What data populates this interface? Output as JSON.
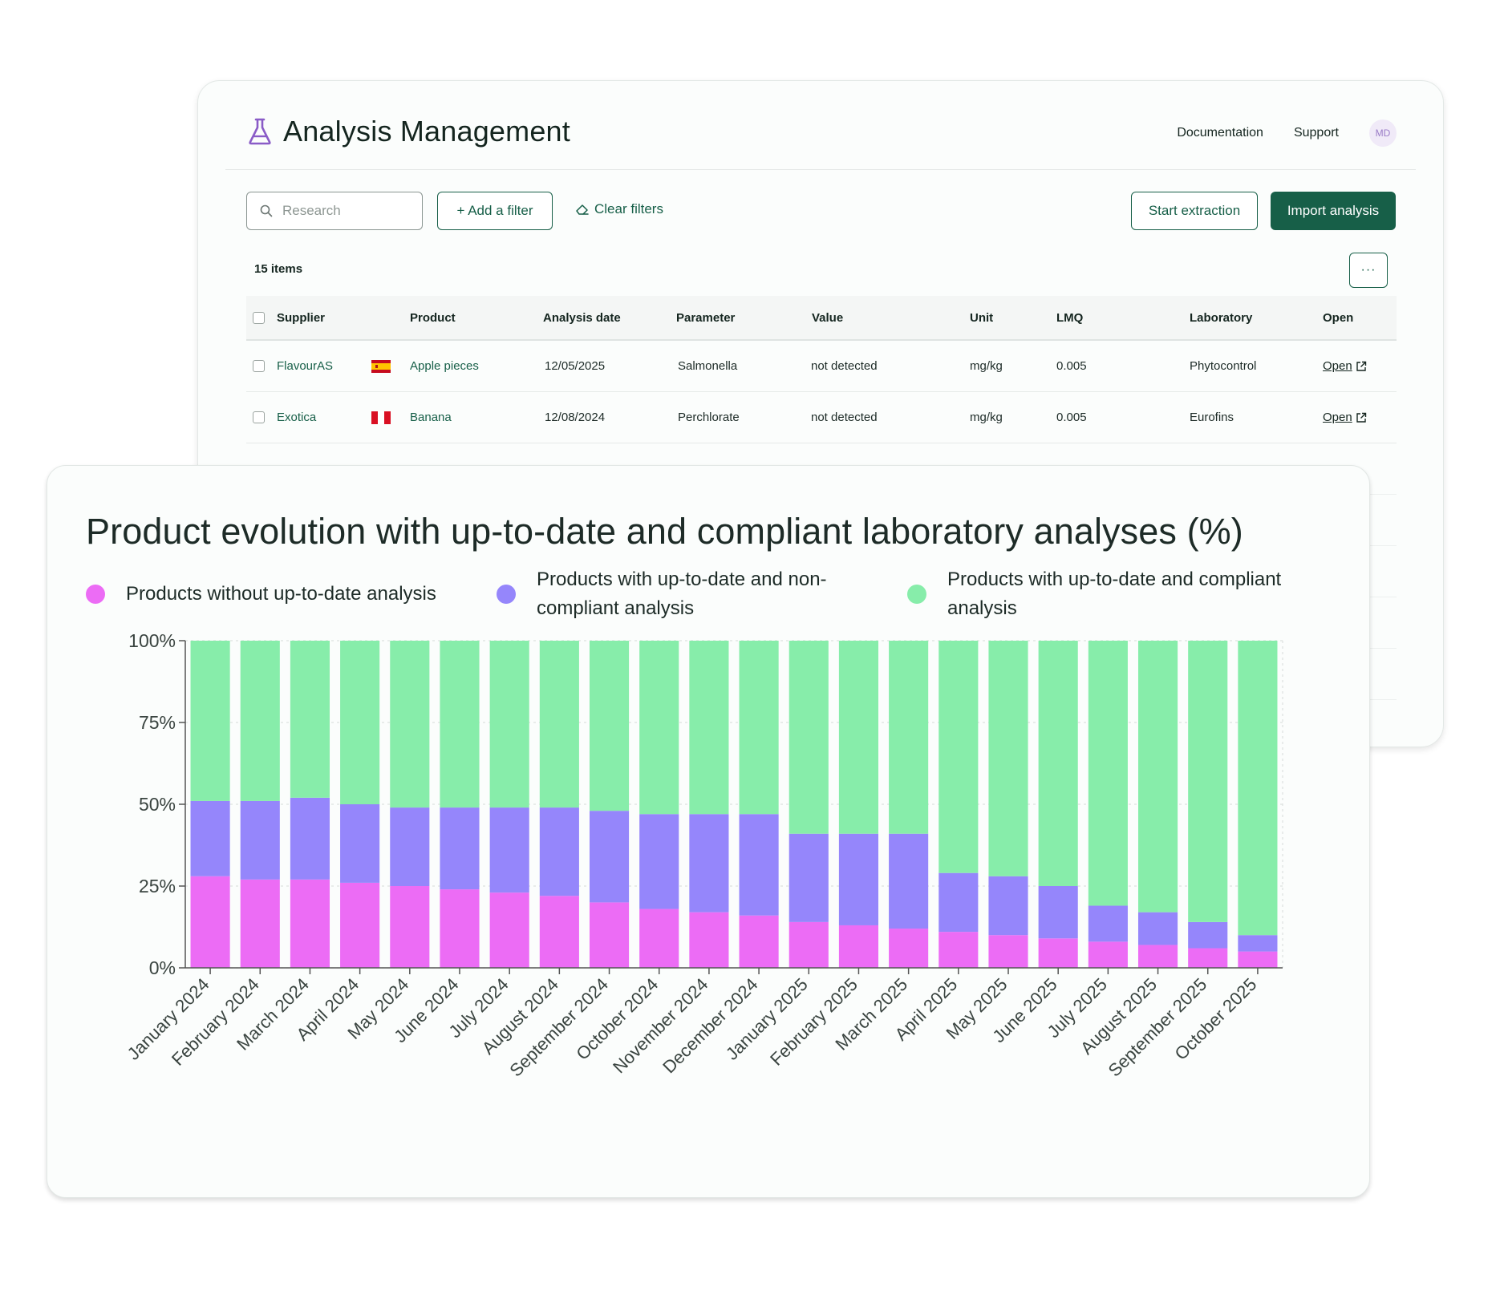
{
  "app": {
    "title": "Analysis Management",
    "icon": "flask-icon",
    "nav": {
      "documentation": "Documentation",
      "support": "Support"
    },
    "avatar_initials": "MD"
  },
  "toolbar": {
    "search_placeholder": "Research",
    "add_filter_label": "+ Add a filter",
    "clear_filters_label": "Clear filters",
    "start_extraction_label": "Start extraction",
    "import_analysis_label": "Import analysis",
    "more_label": "···"
  },
  "items_count": "15 items",
  "table": {
    "columns": [
      "Supplier",
      "Product",
      "Analysis date",
      "Parameter",
      "Value",
      "Unit",
      "LMQ",
      "Laboratory",
      "Open"
    ],
    "rows": [
      {
        "supplier": "FlavourAS",
        "flag": "spain-flag",
        "product": "Apple pieces",
        "date": "12/05/2025",
        "parameter": "Salmonella",
        "value": "not detected",
        "unit": "mg/kg",
        "lmq": "0.005",
        "laboratory": "Phytocontrol",
        "open": "Open"
      },
      {
        "supplier": "Exotica",
        "flag": "peru-flag",
        "product": "Banana",
        "date": "12/08/2024",
        "parameter": "Perchlorate",
        "value": "not detected",
        "unit": "mg/kg",
        "lmq": "0.005",
        "laboratory": "Eurofins",
        "open": "Open"
      }
    ]
  },
  "colors": {
    "brand": "#175f48",
    "without": "#ec6cf5",
    "noncompliant": "#9586fb",
    "compliant": "#87edaa"
  },
  "chart_data": {
    "type": "bar",
    "stacked": true,
    "title": "Product evolution with up-to-date and compliant laboratory analyses (%)",
    "categories": [
      "January 2024",
      "February 2024",
      "March 2024",
      "April 2024",
      "May 2024",
      "June 2024",
      "July 2024",
      "August 2024",
      "September 2024",
      "October 2024",
      "November 2024",
      "December 2024",
      "January 2025",
      "February 2025",
      "March 2025",
      "April 2025",
      "May 2025",
      "June 2025",
      "July 2025",
      "August 2025",
      "September 2025",
      "October 2025"
    ],
    "series": [
      {
        "name": "Products without up-to-date analysis",
        "color": "#ec6cf5",
        "values": [
          28,
          27,
          27,
          26,
          25,
          24,
          23,
          22,
          20,
          18,
          17,
          16,
          14,
          13,
          12,
          11,
          10,
          9,
          8,
          7,
          6,
          5
        ]
      },
      {
        "name": "Products with up-to-date and non-compliant analysis",
        "color": "#9586fb",
        "values": [
          23,
          24,
          25,
          24,
          24,
          25,
          26,
          27,
          28,
          29,
          30,
          31,
          27,
          28,
          29,
          18,
          18,
          16,
          11,
          10,
          8,
          5
        ]
      },
      {
        "name": "Products with up-to-date and compliant analysis",
        "color": "#87edaa",
        "values": [
          49,
          49,
          48,
          50,
          51,
          51,
          51,
          51,
          52,
          53,
          53,
          53,
          59,
          59,
          59,
          71,
          72,
          75,
          81,
          83,
          86,
          90
        ]
      }
    ],
    "ylim": [
      0,
      100
    ],
    "yticks": [
      "0%",
      "25%",
      "50%",
      "75%",
      "100%"
    ],
    "ytick_values": [
      0,
      25,
      50,
      75,
      100
    ],
    "grid": true,
    "legend_position": "top-left"
  }
}
